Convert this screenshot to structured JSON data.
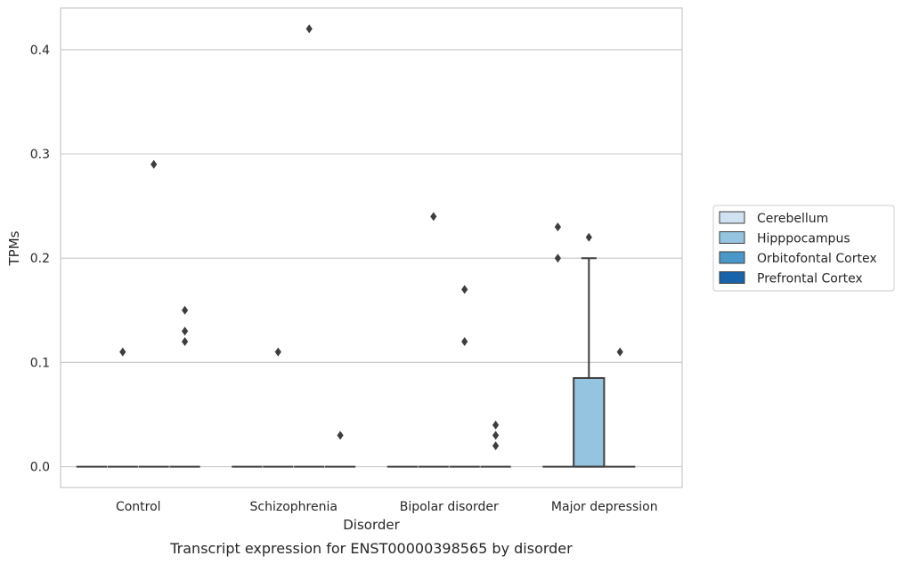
{
  "caption": "Transcript expression for ENST00000398565 by disorder",
  "chart_data": {
    "type": "box",
    "title": "",
    "xlabel": "Disorder",
    "ylabel": "TPMs",
    "categories": [
      "Control",
      "Schizophrenia",
      "Bipolar disorder",
      "Major depression"
    ],
    "ylim": [
      -0.02,
      0.44
    ],
    "yticks": [
      0.0,
      0.1,
      0.2,
      0.3,
      0.4
    ],
    "ytick_labels": [
      "0.0",
      "0.1",
      "0.2",
      "0.3",
      "0.4"
    ],
    "grid": true,
    "legend_position": "right",
    "series": [
      {
        "name": "Cerebellum",
        "color": "#d0e1f2",
        "boxes": [
          {
            "category": "Control",
            "q1": 0,
            "median": 0,
            "q3": 0,
            "whisker_low": 0,
            "whisker_high": 0,
            "outliers": []
          },
          {
            "category": "Schizophrenia",
            "q1": 0,
            "median": 0,
            "q3": 0,
            "whisker_low": 0,
            "whisker_high": 0,
            "outliers": []
          },
          {
            "category": "Bipolar disorder",
            "q1": 0,
            "median": 0,
            "q3": 0,
            "whisker_low": 0,
            "whisker_high": 0,
            "outliers": []
          },
          {
            "category": "Major depression",
            "q1": 0,
            "median": 0,
            "q3": 0,
            "whisker_low": 0,
            "whisker_high": 0,
            "outliers": [
              0.23,
              0.2
            ]
          }
        ]
      },
      {
        "name": "Hipppocampus",
        "color": "#94c4df",
        "boxes": [
          {
            "category": "Control",
            "q1": 0,
            "median": 0,
            "q3": 0,
            "whisker_low": 0,
            "whisker_high": 0,
            "outliers": [
              0.11
            ]
          },
          {
            "category": "Schizophrenia",
            "q1": 0,
            "median": 0,
            "q3": 0,
            "whisker_low": 0,
            "whisker_high": 0,
            "outliers": [
              0.11
            ]
          },
          {
            "category": "Bipolar disorder",
            "q1": 0,
            "median": 0,
            "q3": 0,
            "whisker_low": 0,
            "whisker_high": 0,
            "outliers": [
              0.24
            ]
          },
          {
            "category": "Major depression",
            "q1": 0,
            "median": 0,
            "q3": 0.085,
            "whisker_low": 0,
            "whisker_high": 0.2,
            "outliers": [
              0.22
            ]
          }
        ]
      },
      {
        "name": "Orbitofontal Cortex",
        "color": "#4a98c9",
        "boxes": [
          {
            "category": "Control",
            "q1": 0,
            "median": 0,
            "q3": 0,
            "whisker_low": 0,
            "whisker_high": 0,
            "outliers": [
              0.29
            ]
          },
          {
            "category": "Schizophrenia",
            "q1": 0,
            "median": 0,
            "q3": 0,
            "whisker_low": 0,
            "whisker_high": 0,
            "outliers": [
              0.42
            ]
          },
          {
            "category": "Bipolar disorder",
            "q1": 0,
            "median": 0,
            "q3": 0,
            "whisker_low": 0,
            "whisker_high": 0,
            "outliers": [
              0.17,
              0.12
            ]
          },
          {
            "category": "Major depression",
            "q1": 0,
            "median": 0,
            "q3": 0,
            "whisker_low": 0,
            "whisker_high": 0,
            "outliers": [
              0.11
            ]
          }
        ]
      },
      {
        "name": "Prefrontal Cortex",
        "color": "#1764ab",
        "boxes": [
          {
            "category": "Control",
            "q1": 0,
            "median": 0,
            "q3": 0,
            "whisker_low": 0,
            "whisker_high": 0,
            "outliers": [
              0.15,
              0.13,
              0.12
            ]
          },
          {
            "category": "Schizophrenia",
            "q1": 0,
            "median": 0,
            "q3": 0,
            "whisker_low": 0,
            "whisker_high": 0,
            "outliers": [
              0.03
            ]
          },
          {
            "category": "Bipolar disorder",
            "q1": 0,
            "median": 0,
            "q3": 0,
            "whisker_low": 0,
            "whisker_high": 0,
            "outliers": [
              0.04,
              0.03,
              0.02
            ]
          }
        ]
      }
    ]
  }
}
